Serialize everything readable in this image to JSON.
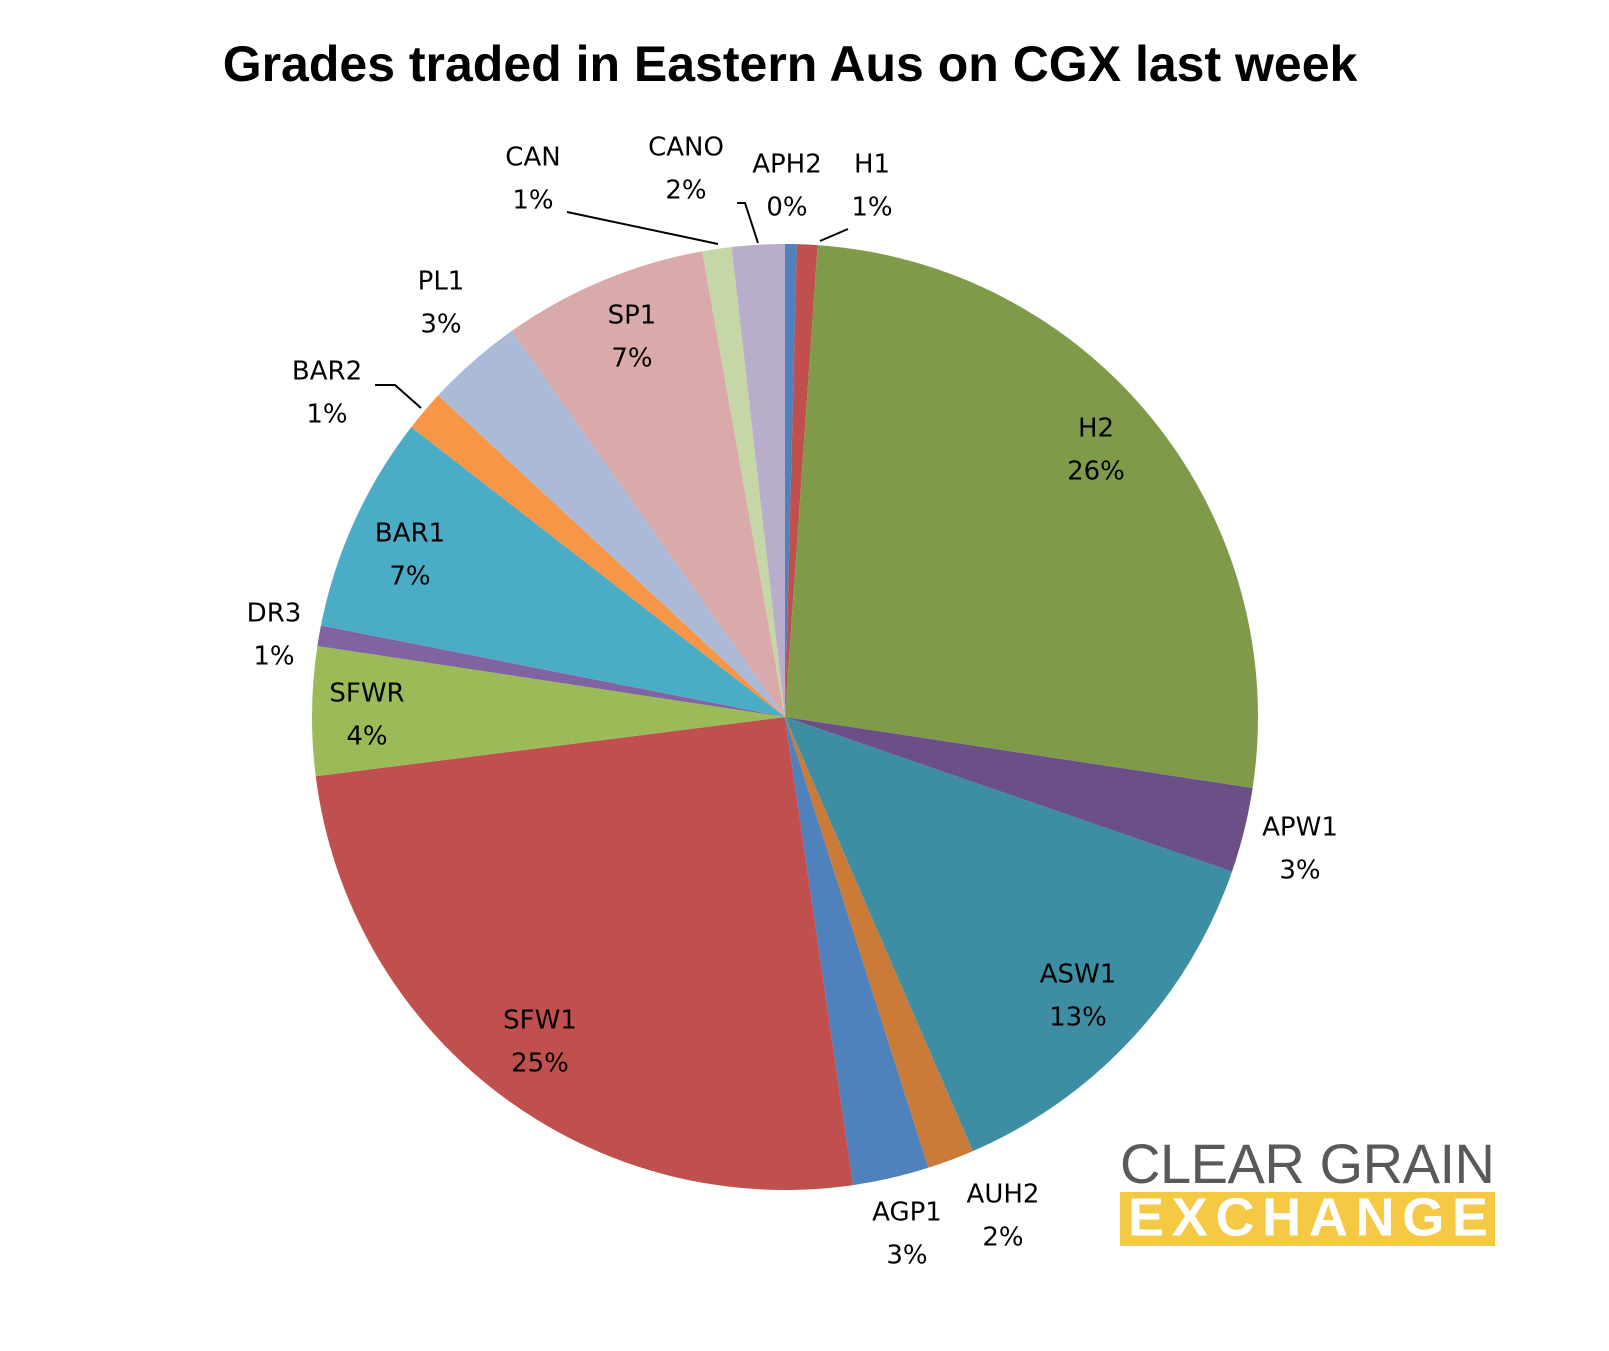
{
  "chart_data": {
    "type": "pie",
    "title": "Grades traded in Eastern Aus on CGX last week",
    "categories": [
      "APH2",
      "H1",
      "H2",
      "APW1",
      "ASW1",
      "AUH2",
      "AGP1",
      "SFW1",
      "SFWR",
      "DR3",
      "BAR1",
      "BAR2",
      "PL1",
      "SP1",
      "CAN",
      "CANO"
    ],
    "values": [
      0.4,
      0.7,
      26.3,
      2.9,
      13.2,
      1.6,
      2.6,
      25.3,
      4.4,
      0.7,
      7.4,
      1.4,
      3.3,
      7.0,
      1.0,
      1.8
    ],
    "value_labels": [
      "0%",
      "1%",
      "26%",
      "3%",
      "13%",
      "2%",
      "3%",
      "25%",
      "4%",
      "1%",
      "7%",
      "1%",
      "3%",
      "7%",
      "1%",
      "2%"
    ],
    "colors": [
      "#4f81bd",
      "#c0504d",
      "#7f9b4a",
      "#6a5086",
      "#3d8da3",
      "#cc7a37",
      "#4f81bd",
      "#c0504d",
      "#9bbb59",
      "#8064a2",
      "#4bacc6",
      "#f79646",
      "#aabad7",
      "#d9aaa9",
      "#c5d6a7",
      "#b8aecb"
    ]
  },
  "logo": {
    "line1": "CLEAR GRAIN",
    "line2": "EXCHANGE"
  }
}
